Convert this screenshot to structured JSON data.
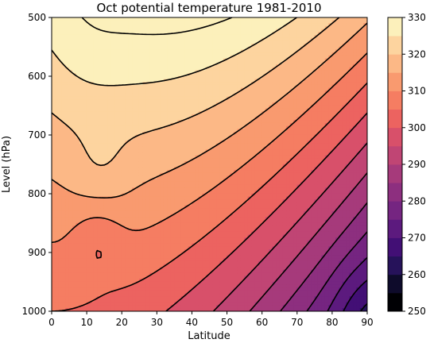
{
  "chart_data": {
    "type": "filled-contour",
    "title": "Oct potential temperature 1981-2010",
    "xlabel": "Latitude",
    "ylabel": "Level (hPa)",
    "xlim": [
      0,
      90
    ],
    "ylim": [
      1000,
      500
    ],
    "y_inverted": true,
    "x_ticks": [
      "0",
      "10",
      "20",
      "30",
      "40",
      "50",
      "60",
      "70",
      "80",
      "90"
    ],
    "y_ticks": [
      "500",
      "600",
      "700",
      "800",
      "900",
      "1000"
    ],
    "colorbar": {
      "levels": [
        250,
        255,
        260,
        265,
        270,
        275,
        280,
        285,
        290,
        295,
        300,
        305,
        310,
        315,
        320,
        325,
        330
      ],
      "tick_labels": [
        "250",
        "260",
        "270",
        "280",
        "290",
        "300",
        "310",
        "320",
        "330"
      ],
      "colormap": "magma",
      "colors": [
        "#000004",
        "#0e0b2b",
        "#26125a",
        "#420f75",
        "#5c1a7e",
        "#752581",
        "#8d2f7f",
        "#a63a7b",
        "#c04574",
        "#d8506a",
        "#ec6360",
        "#f57d62",
        "#f99a6f",
        "#fcb886",
        "#fdd49f",
        "#fcf0bb"
      ]
    },
    "contour_levels": [
      250,
      255,
      260,
      265,
      270,
      275,
      280,
      285,
      290,
      295,
      300,
      305,
      310,
      315,
      320,
      325,
      330
    ],
    "grid": false
  }
}
